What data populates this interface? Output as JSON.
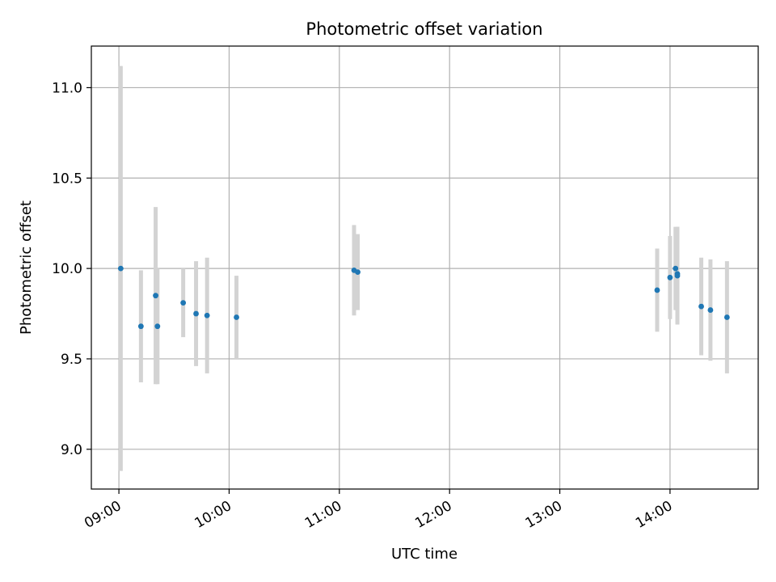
{
  "chart_data": {
    "type": "scatter",
    "title": "Photometric offset variation",
    "xlabel": "UTC time",
    "ylabel": "Photometric offset",
    "grid": true,
    "legend": "none",
    "x_range": [
      "08:45",
      "14:48"
    ],
    "y_range": [
      8.78,
      11.23
    ],
    "x_ticks": [
      "09:00",
      "10:00",
      "11:00",
      "12:00",
      "13:00",
      "14:00"
    ],
    "y_ticks": [
      9.0,
      9.5,
      10.0,
      10.5,
      11.0
    ],
    "y_tick_labels": [
      "9.0",
      "9.5",
      "10.0",
      "10.5",
      "11.0"
    ],
    "colors": {
      "points": "#1f77b4",
      "errorbars": "#d3d3d3",
      "grid": "#b0b0b0"
    },
    "points": [
      {
        "time": "09:01",
        "y": 10.0,
        "err": 1.12
      },
      {
        "time": "09:12",
        "y": 9.68,
        "err": 0.31
      },
      {
        "time": "09:20",
        "y": 9.85,
        "err": 0.49
      },
      {
        "time": "09:21",
        "y": 9.68,
        "err": 0.32
      },
      {
        "time": "09:35",
        "y": 9.81,
        "err": 0.19
      },
      {
        "time": "09:42",
        "y": 9.75,
        "err": 0.29
      },
      {
        "time": "09:48",
        "y": 9.74,
        "err": 0.32
      },
      {
        "time": "10:04",
        "y": 9.73,
        "err": 0.23
      },
      {
        "time": "11:08",
        "y": 9.99,
        "err": 0.25
      },
      {
        "time": "11:10",
        "y": 9.98,
        "err": 0.21
      },
      {
        "time": "13:53",
        "y": 9.88,
        "err": 0.23
      },
      {
        "time": "14:00",
        "y": 9.95,
        "err": 0.23
      },
      {
        "time": "14:03",
        "y": 10.0,
        "err": 0.23
      },
      {
        "time": "14:04",
        "y": 9.97,
        "err": 0.26
      },
      {
        "time": "14:04",
        "y": 9.96,
        "err": 0.27
      },
      {
        "time": "14:17",
        "y": 9.79,
        "err": 0.27
      },
      {
        "time": "14:22",
        "y": 9.77,
        "err": 0.28
      },
      {
        "time": "14:31",
        "y": 9.73,
        "err": 0.31
      }
    ]
  }
}
